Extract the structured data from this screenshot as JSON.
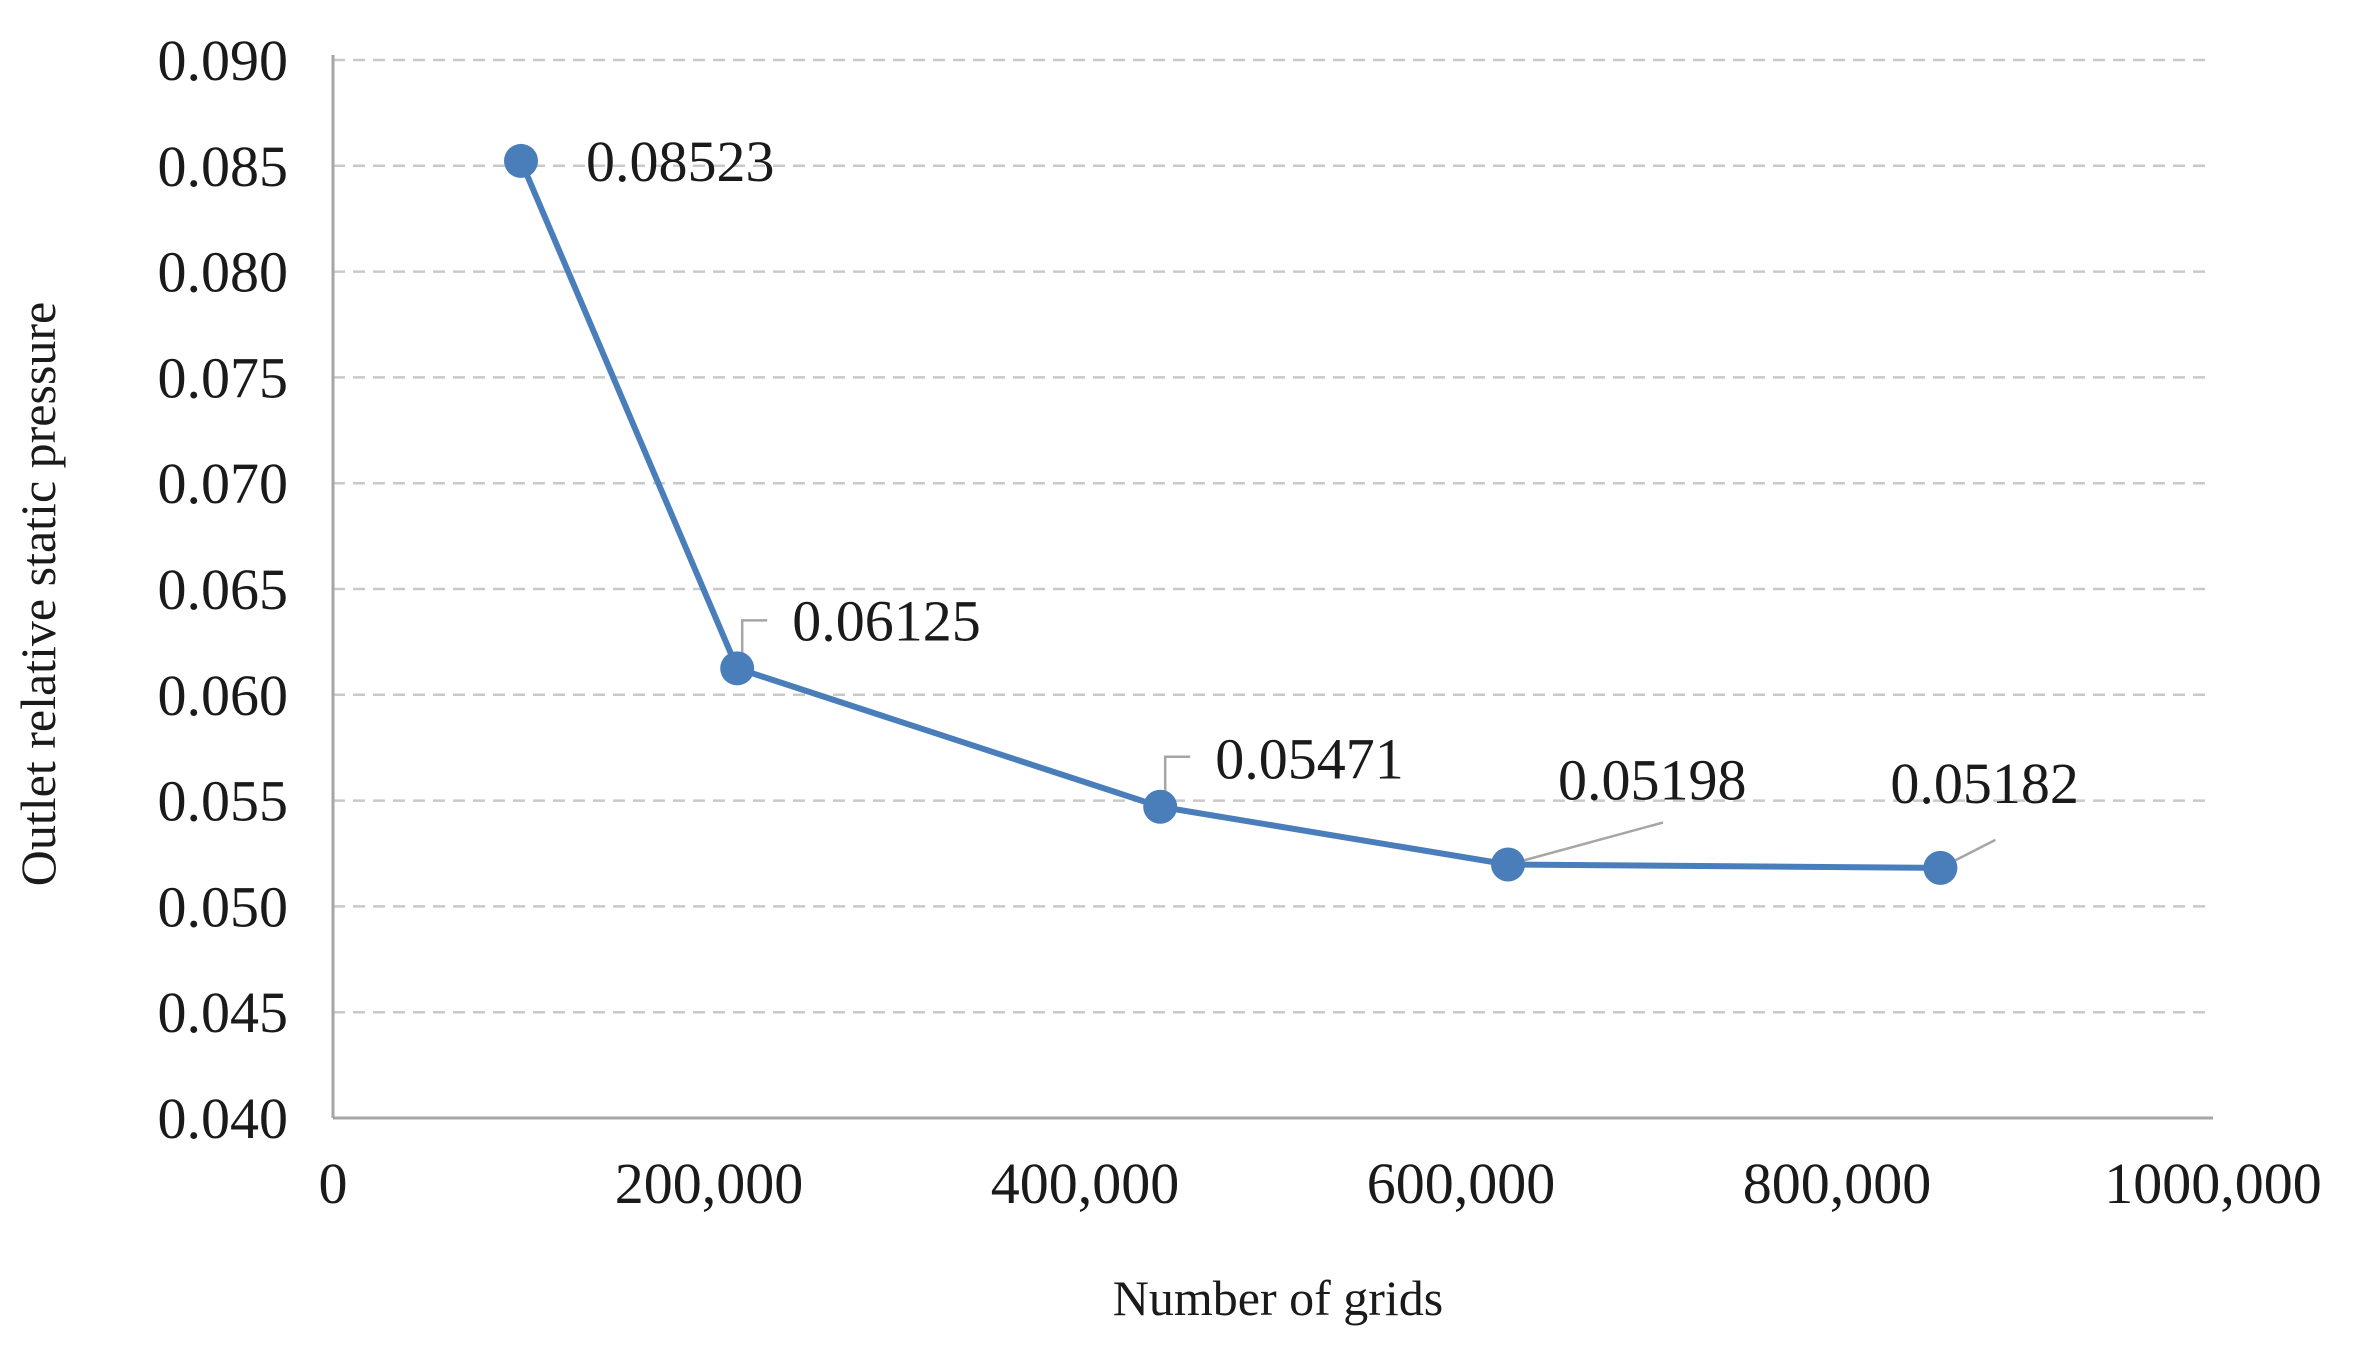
{
  "chart_data": {
    "type": "line",
    "title": "",
    "xlabel": "Number of grids",
    "ylabel": "Outlet relative static pressure",
    "xlim": [
      0,
      1000000
    ],
    "ylim": [
      0.04,
      0.09
    ],
    "x_ticks": [
      0,
      200000,
      400000,
      600000,
      800000,
      1000000
    ],
    "x_tick_labels": [
      "0",
      "200,000",
      "400,000",
      "600,000",
      "800,000",
      "1000,000"
    ],
    "y_ticks": [
      0.04,
      0.045,
      0.05,
      0.055,
      0.06,
      0.065,
      0.07,
      0.075,
      0.08,
      0.085,
      0.09
    ],
    "y_tick_labels": [
      "0.040",
      "0.045",
      "0.050",
      "0.055",
      "0.060",
      "0.065",
      "0.070",
      "0.075",
      "0.080",
      "0.085",
      "0.090"
    ],
    "grid": true,
    "legend": "none",
    "series": [
      {
        "color": "#4a7ebb",
        "points": [
          {
            "x": 100000,
            "y": 0.08523,
            "label": "0.08523"
          },
          {
            "x": 215000,
            "y": 0.06125,
            "label": "0.06125"
          },
          {
            "x": 440000,
            "y": 0.05471,
            "label": "0.05471"
          },
          {
            "x": 625000,
            "y": 0.05198,
            "label": "0.05198"
          },
          {
            "x": 855000,
            "y": 0.05182,
            "label": "0.05182"
          }
        ]
      }
    ]
  }
}
